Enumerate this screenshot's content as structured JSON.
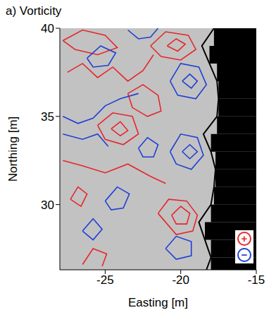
{
  "chart_data": {
    "type": "contour",
    "title": "a) Vorticity",
    "x_label": "Easting [m]",
    "y_label": "Northing [m]",
    "xlim": [
      -28,
      -15
    ],
    "xticks": [
      -25,
      -20,
      -15
    ],
    "ylim": [
      26.3,
      40
    ],
    "yticks": [
      30,
      35,
      40
    ],
    "grid": false,
    "legend": "bottom-right",
    "shoreline": {
      "northing": [
        26.3,
        27,
        28,
        29,
        30,
        31,
        32,
        33,
        34,
        35,
        36,
        37,
        38,
        39,
        40
      ],
      "easting": [
        -18.3,
        -18,
        -18.4,
        -18.8,
        -18,
        -17.8,
        -17.7,
        -18,
        -18.5,
        -17.6,
        -17.5,
        -17.6,
        -18.1,
        -18.6,
        -17.8
      ]
    },
    "series": [
      {
        "name": "+",
        "color": "#e8262a",
        "contours": [
          [
            [
              -21.5,
              29.5
            ],
            [
              -20.8,
              30.3
            ],
            [
              -19.6,
              30.2
            ],
            [
              -18.9,
              29.4
            ],
            [
              -19.2,
              28.5
            ],
            [
              -20.3,
              28.3
            ],
            [
              -21.5,
              29.5
            ]
          ],
          [
            [
              -20.6,
              29.4
            ],
            [
              -20,
              29.9
            ],
            [
              -19.4,
              29.5
            ],
            [
              -19.6,
              28.9
            ],
            [
              -20.3,
              28.9
            ],
            [
              -20.6,
              29.4
            ]
          ],
          [
            [
              -22,
              39
            ],
            [
              -21,
              39.8
            ],
            [
              -19.5,
              39.6
            ],
            [
              -19,
              38.8
            ],
            [
              -20,
              38.2
            ],
            [
              -21.3,
              38.4
            ],
            [
              -22,
              39
            ]
          ],
          [
            [
              -20.9,
              39
            ],
            [
              -20.3,
              39.4
            ],
            [
              -19.7,
              39.1
            ],
            [
              -20.2,
              38.7
            ],
            [
              -20.9,
              39
            ]
          ],
          [
            [
              -27.5,
              37.5
            ],
            [
              -26.5,
              38
            ],
            [
              -25.5,
              37.2
            ],
            [
              -24.5,
              37.8
            ],
            [
              -23.5,
              37
            ],
            [
              -22.5,
              37.6
            ],
            [
              -21.8,
              38.5
            ]
          ],
          [
            [
              -25.5,
              34.5
            ],
            [
              -24.5,
              35.2
            ],
            [
              -23.2,
              35
            ],
            [
              -22.8,
              34
            ],
            [
              -23.8,
              33.4
            ],
            [
              -25,
              33.7
            ],
            [
              -25.5,
              34.5
            ]
          ],
          [
            [
              -24.6,
              34.3
            ],
            [
              -24,
              34.7
            ],
            [
              -23.5,
              34.2
            ],
            [
              -24,
              33.9
            ],
            [
              -24.6,
              34.3
            ]
          ],
          [
            [
              -27.3,
              30.3
            ],
            [
              -26.8,
              31
            ],
            [
              -26.2,
              30.6
            ],
            [
              -26.6,
              29.9
            ],
            [
              -27.3,
              30.3
            ]
          ],
          [
            [
              -27.8,
              32.5
            ],
            [
              -26.5,
              32.2
            ],
            [
              -25,
              31.8
            ],
            [
              -23.5,
              32.3
            ],
            [
              -22,
              31.6
            ],
            [
              -21,
              31.2
            ]
          ],
          [
            [
              -26.5,
              26.6
            ],
            [
              -25.8,
              27.5
            ],
            [
              -24.9,
              27.2
            ],
            [
              -25.2,
              26.5
            ]
          ],
          [
            [
              -27.8,
              39.3
            ],
            [
              -26.5,
              39.9
            ],
            [
              -25,
              39.6
            ],
            [
              -24.2,
              38.9
            ],
            [
              -25.5,
              38.5
            ],
            [
              -27,
              38.8
            ],
            [
              -27.8,
              39.3
            ]
          ],
          [
            [
              -23.5,
              36.3
            ],
            [
              -22.5,
              36.8
            ],
            [
              -21.5,
              36.2
            ],
            [
              -21.3,
              35.3
            ],
            [
              -22.2,
              35
            ],
            [
              -23.2,
              35.5
            ],
            [
              -23.5,
              36.3
            ]
          ]
        ]
      },
      {
        "name": "−",
        "color": "#1f3fd6",
        "contours": [
          [
            [
              -20.7,
              37
            ],
            [
              -20,
              38
            ],
            [
              -18.8,
              37.8
            ],
            [
              -18.3,
              36.8
            ],
            [
              -19,
              36
            ],
            [
              -20.2,
              36.2
            ],
            [
              -20.7,
              37
            ]
          ],
          [
            [
              -19.9,
              37
            ],
            [
              -19.4,
              37.4
            ],
            [
              -18.9,
              37
            ],
            [
              -19.3,
              36.6
            ],
            [
              -19.9,
              37
            ]
          ],
          [
            [
              -20.7,
              33
            ],
            [
              -20,
              34
            ],
            [
              -18.9,
              33.8
            ],
            [
              -18.5,
              32.8
            ],
            [
              -19.3,
              32
            ],
            [
              -20.3,
              32.3
            ],
            [
              -20.7,
              33
            ]
          ],
          [
            [
              -19.9,
              33
            ],
            [
              -19.4,
              33.4
            ],
            [
              -18.9,
              33
            ],
            [
              -19.4,
              32.6
            ],
            [
              -19.9,
              33
            ]
          ],
          [
            [
              -21,
              27.5
            ],
            [
              -20.3,
              28.2
            ],
            [
              -19.3,
              27.9
            ],
            [
              -19.3,
              27.1
            ],
            [
              -20.3,
              26.9
            ],
            [
              -21,
              27.5
            ]
          ],
          [
            [
              -26.2,
              38.3
            ],
            [
              -25.3,
              39
            ],
            [
              -24.3,
              38.6
            ],
            [
              -24.8,
              37.9
            ],
            [
              -25.8,
              37.8
            ],
            [
              -26.2,
              38.3
            ]
          ],
          [
            [
              -27.8,
              35
            ],
            [
              -26.8,
              34.6
            ],
            [
              -25.8,
              34.9
            ],
            [
              -25,
              35.6
            ],
            [
              -24,
              36
            ],
            [
              -22.8,
              36.3
            ]
          ],
          [
            [
              -27.8,
              34
            ],
            [
              -26.5,
              33.7
            ],
            [
              -25.5,
              34
            ],
            [
              -24.8,
              33.3
            ]
          ],
          [
            [
              -25,
              30.2
            ],
            [
              -24.2,
              31
            ],
            [
              -23.4,
              30.6
            ],
            [
              -23.8,
              29.8
            ],
            [
              -24.6,
              29.7
            ],
            [
              -25,
              30.2
            ]
          ],
          [
            [
              -23.5,
              39.9
            ],
            [
              -22.8,
              39.4
            ],
            [
              -22,
              39.5
            ],
            [
              -21.5,
              40
            ]
          ],
          [
            [
              -22.8,
              33.2
            ],
            [
              -22.2,
              33.8
            ],
            [
              -21.5,
              33.4
            ],
            [
              -21.8,
              32.7
            ],
            [
              -22.5,
              32.7
            ],
            [
              -22.8,
              33.2
            ]
          ],
          [
            [
              -26.5,
              28.5
            ],
            [
              -25.8,
              29.2
            ],
            [
              -25.2,
              28.6
            ],
            [
              -25.8,
              28
            ],
            [
              -26.5,
              28.5
            ]
          ]
        ]
      }
    ]
  }
}
